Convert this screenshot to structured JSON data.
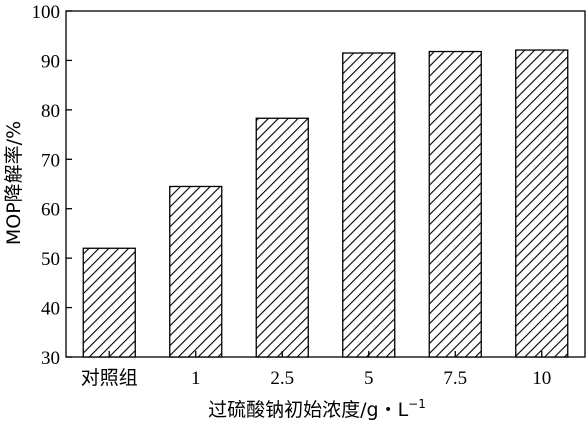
{
  "chart_data": {
    "type": "bar",
    "title": "",
    "xlabel": "过硫酸钠初始浓度/g・L",
    "xlabel_superscript": "−1",
    "ylabel": "MOP降解率/%",
    "categories": [
      "对照组",
      "1",
      "2.5",
      "5",
      "7.5",
      "10"
    ],
    "values": [
      52,
      64.5,
      78.3,
      91.5,
      91.8,
      92.1
    ],
    "ylim": [
      30,
      100
    ],
    "yticks": [
      30,
      40,
      50,
      60,
      70,
      80,
      90,
      100
    ],
    "fill_pattern": "diagonal-hatch",
    "bar_color": "#000000",
    "background": "#ffffff",
    "grid": false,
    "legend": "none"
  }
}
